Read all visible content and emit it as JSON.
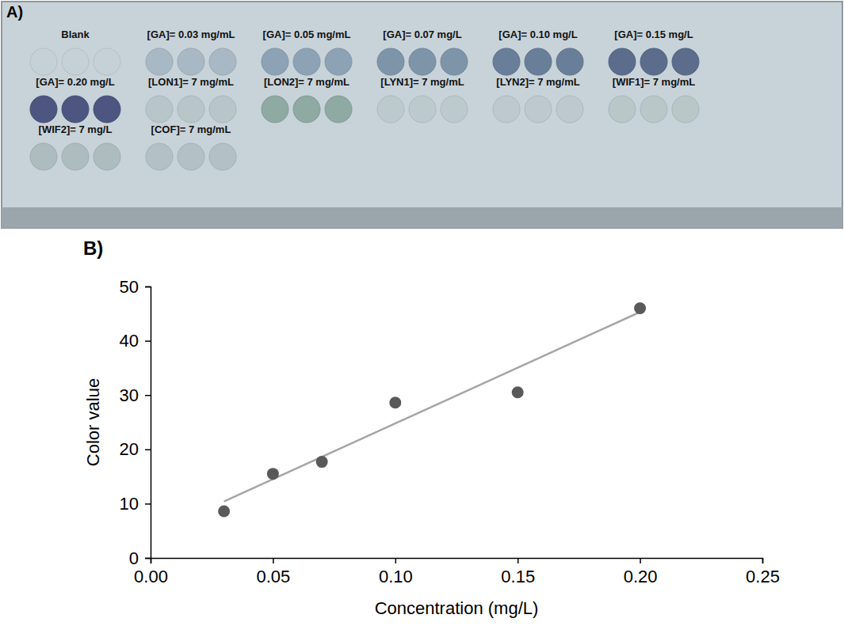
{
  "panel_a": {
    "letter": "A)",
    "rows": [
      [
        {
          "label": "Blank",
          "color": "#c6d0d7"
        },
        {
          "label": "[GA]= 0.03 mg/mL",
          "color": "#a8b8c5"
        },
        {
          "label": "[GA]= 0.05 mg/mL",
          "color": "#8da3b5"
        },
        {
          "label": "[GA]= 0.07 mg/L",
          "color": "#7e95a9"
        },
        {
          "label": "[GA]= 0.10 mg/L",
          "color": "#697e99"
        },
        {
          "label": "[GA]= 0.15 mg/L",
          "color": "#5c6c8c"
        }
      ],
      [
        {
          "label": "[GA]= 0.20 mg/L",
          "color": "#4c5681"
        },
        {
          "label": "[LON1]= 7 mg/mL",
          "color": "#b8c6ca"
        },
        {
          "label": "[LON2]= 7 mg/mL",
          "color": "#8fa9a3"
        },
        {
          "label": "[LYN1]= 7 mg/mL",
          "color": "#bdcacd"
        },
        {
          "label": "[LYN2]= 7 mg/mL",
          "color": "#bdc9cf"
        },
        {
          "label": "[WIF1]= 7 mg/mL",
          "color": "#b9c7c9"
        }
      ],
      [
        {
          "label": "[WIF2]= 7 mg/L",
          "color": "#adbcbf"
        },
        {
          "label": "[COF]= 7 mg/mL",
          "color": "#b3c1c5"
        }
      ]
    ]
  },
  "chart_data": {
    "type": "scatter",
    "letter": "B)",
    "x_label": "Concentration (mg/L)",
    "y_label": "Color value",
    "xlim": [
      0,
      0.25
    ],
    "xticks": [
      {
        "value": 0,
        "label": "0.00"
      },
      {
        "value": 0.05,
        "label": "0.05"
      },
      {
        "value": 0.1,
        "label": "0.10"
      },
      {
        "value": 0.15,
        "label": "0.15"
      },
      {
        "value": 0.2,
        "label": "0.20"
      },
      {
        "value": 0.25,
        "label": "0.25"
      }
    ],
    "ylim": [
      0,
      50
    ],
    "yticks": [
      0,
      10,
      20,
      30,
      40,
      50
    ],
    "grid": false,
    "series": [
      {
        "type": "scatter",
        "color": "#595959",
        "marker": "circle",
        "x": [
          0.03,
          0.05,
          0.07,
          0.1,
          0.15,
          0.2
        ],
        "values": [
          8.6,
          15.5,
          17.7,
          28.6,
          30.5,
          46.0
        ]
      },
      {
        "type": "line",
        "color": "#a6a6a6",
        "line_style": "solid",
        "x": [
          0.03,
          0.2
        ],
        "values": [
          10.4,
          45.3
        ]
      }
    ]
  }
}
